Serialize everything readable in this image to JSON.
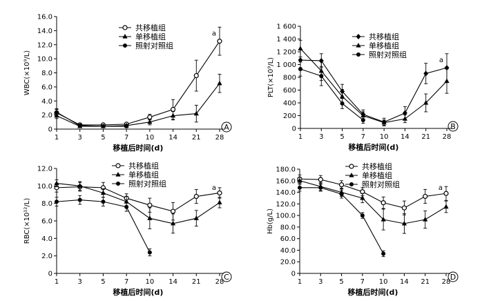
{
  "x_axis_label": "移植后时间(d)",
  "chart_data": [
    {
      "type": "line",
      "panel_label": "A",
      "ylabel": "WBC(×10⁹/L)",
      "x_ticks": [
        "1",
        "3",
        "5",
        "7",
        "10",
        "14",
        "21",
        "28"
      ],
      "ylim": [
        0,
        16
      ],
      "y_ticks": [
        "0",
        "2.0",
        "4.0",
        "6.0",
        "8.0",
        "10.0",
        "12.0",
        "14.0",
        "16.0"
      ],
      "legend_position": "top-center",
      "annotation": {
        "text": "a",
        "x": 28
      },
      "series": [
        {
          "name": "共移植组",
          "marker": "open-circle",
          "x": [
            1,
            3,
            5,
            7,
            10,
            14,
            21,
            28
          ],
          "values": [
            2.3,
            0.6,
            0.6,
            0.7,
            1.7,
            2.8,
            7.6,
            12.5
          ],
          "errors": [
            0.5,
            0.2,
            0.2,
            0.2,
            0.4,
            1.4,
            2.2,
            2.0
          ]
        },
        {
          "name": "单移植组",
          "marker": "triangle",
          "x": [
            1,
            3,
            5,
            7,
            10,
            14,
            21,
            28
          ],
          "values": [
            1.9,
            0.4,
            0.4,
            0.5,
            1.0,
            1.9,
            2.2,
            6.5
          ],
          "errors": [
            0.4,
            0.2,
            0.2,
            0.2,
            0.4,
            0.6,
            1.2,
            1.3
          ]
        },
        {
          "name": "照射对照组",
          "marker": "filled-circle",
          "x": [
            1,
            3,
            5,
            7
          ],
          "values": [
            2.4,
            0.5,
            0.4,
            0.4
          ],
          "errors": [
            0.5,
            0.2,
            0.2,
            0.2
          ]
        }
      ]
    },
    {
      "type": "line",
      "panel_label": "B",
      "ylabel": "PLT(×10⁹/L)",
      "x_ticks": [
        "1",
        "3",
        "5",
        "7",
        "10",
        "14",
        "21",
        "28"
      ],
      "ylim": [
        0,
        1600
      ],
      "y_ticks": [
        "0",
        "200",
        "400",
        "600",
        "800",
        "1 000",
        "1 200",
        "1 400",
        "1 600"
      ],
      "legend_position": "top-center",
      "annotation": {
        "text": "a",
        "x": 28
      },
      "series": [
        {
          "name": "共移植组",
          "marker": "filled-diamond",
          "x": [
            1,
            3,
            5,
            7,
            10,
            14,
            21,
            28
          ],
          "values": [
            1070,
            1060,
            580,
            220,
            100,
            240,
            860,
            950
          ],
          "errors": [
            160,
            110,
            110,
            70,
            60,
            100,
            160,
            220
          ]
        },
        {
          "name": "单移植组",
          "marker": "triangle",
          "x": [
            1,
            3,
            5,
            7,
            10,
            14,
            21,
            28
          ],
          "values": [
            1250,
            900,
            500,
            200,
            90,
            150,
            400,
            740
          ],
          "errors": [
            130,
            150,
            110,
            60,
            40,
            60,
            140,
            190
          ]
        },
        {
          "name": "照射对照组",
          "marker": "filled-circle",
          "x": [
            1,
            3,
            5,
            7
          ],
          "values": [
            930,
            820,
            390,
            130
          ],
          "errors": [
            110,
            150,
            80,
            50
          ]
        }
      ]
    },
    {
      "type": "line",
      "panel_label": "C",
      "ylabel": "RBC(×10¹²/L)",
      "x_ticks": [
        "1",
        "3",
        "5",
        "7",
        "10",
        "14",
        "21",
        "28"
      ],
      "ylim": [
        0,
        12
      ],
      "y_ticks": [
        "0",
        "2.0",
        "4.0",
        "6.0",
        "8.0",
        "10.0",
        "12.0"
      ],
      "legend_position": "top-center",
      "annotation": {
        "text": "a",
        "x": 28
      },
      "series": [
        {
          "name": "共移植组",
          "marker": "open-circle",
          "x": [
            1,
            3,
            5,
            7,
            10,
            14,
            21,
            28
          ],
          "values": [
            9.8,
            9.9,
            9.8,
            8.6,
            7.8,
            7.1,
            8.8,
            9.2
          ],
          "errors": [
            0.5,
            0.5,
            0.6,
            0.5,
            0.8,
            1.0,
            0.8,
            0.6
          ]
        },
        {
          "name": "单移植组",
          "marker": "triangle",
          "x": [
            1,
            3,
            5,
            7,
            10,
            14,
            21,
            28
          ],
          "values": [
            10.3,
            10.0,
            9.2,
            8.2,
            6.3,
            5.7,
            6.3,
            8.1
          ],
          "errors": [
            0.4,
            0.5,
            0.5,
            0.6,
            1.2,
            1.1,
            0.9,
            0.6
          ]
        },
        {
          "name": "照射对照组",
          "marker": "filled-circle",
          "x": [
            1,
            3,
            5,
            7,
            10
          ],
          "values": [
            8.2,
            8.4,
            8.2,
            7.6,
            2.4
          ],
          "errors": [
            0.5,
            0.5,
            0.5,
            0.5,
            0.4
          ]
        }
      ]
    },
    {
      "type": "line",
      "panel_label": "D",
      "ylabel": "Hb(g/L)",
      "x_ticks": [
        "1",
        "3",
        "5",
        "7",
        "10",
        "14",
        "21",
        "28"
      ],
      "ylim": [
        0,
        180
      ],
      "y_ticks": [
        "0",
        "20.0",
        "40.0",
        "60.0",
        "80.0",
        "100.0",
        "120.0",
        "140.0",
        "160.0",
        "180.0"
      ],
      "legend_position": "top-center",
      "annotation": {
        "text": "a",
        "x": 28
      },
      "series": [
        {
          "name": "共移植组",
          "marker": "open-circle",
          "x": [
            1,
            3,
            5,
            7,
            10,
            14,
            21,
            28
          ],
          "values": [
            163,
            162,
            153,
            141,
            122,
            113,
            133,
            138
          ],
          "errors": [
            7,
            7,
            7,
            7,
            10,
            12,
            12,
            12
          ]
        },
        {
          "name": "单移植组",
          "marker": "triangle",
          "x": [
            1,
            3,
            5,
            7,
            10,
            14,
            21,
            28
          ],
          "values": [
            160,
            150,
            140,
            130,
            93,
            86,
            93,
            115
          ],
          "errors": [
            6,
            7,
            7,
            8,
            18,
            17,
            15,
            10
          ]
        },
        {
          "name": "照射对照组",
          "marker": "filled-circle",
          "x": [
            1,
            3,
            5,
            7,
            10
          ],
          "values": [
            148,
            148,
            137,
            100,
            34
          ],
          "errors": [
            6,
            6,
            7,
            5,
            5
          ]
        }
      ]
    }
  ]
}
